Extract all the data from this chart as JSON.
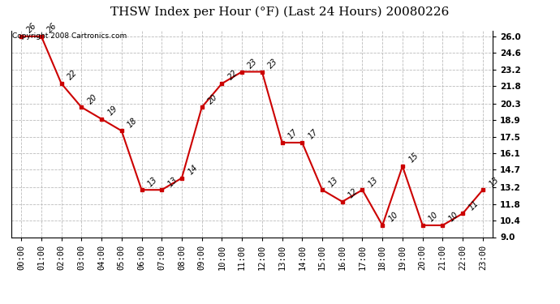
{
  "title": "THSW Index per Hour (°F) (Last 24 Hours) 20080226",
  "copyright": "Copyright 2008 Cartronics.com",
  "hours": [
    "00:00",
    "01:00",
    "02:00",
    "03:00",
    "04:00",
    "05:00",
    "06:00",
    "07:00",
    "08:00",
    "09:00",
    "10:00",
    "11:00",
    "12:00",
    "13:00",
    "14:00",
    "15:00",
    "16:00",
    "17:00",
    "18:00",
    "19:00",
    "20:00",
    "21:00",
    "22:00",
    "23:00"
  ],
  "values": [
    26,
    26,
    22,
    20,
    19,
    18,
    13,
    13,
    14,
    20,
    22,
    23,
    23,
    17,
    17,
    13,
    12,
    13,
    10,
    15,
    10,
    10,
    11,
    13
  ],
  "line_color": "#cc0000",
  "marker_color": "#cc0000",
  "bg_color": "#ffffff",
  "grid_color": "#bbbbbb",
  "ylim": [
    9.0,
    26.5
  ],
  "yticks": [
    9.0,
    10.4,
    11.8,
    13.2,
    14.7,
    16.1,
    17.5,
    18.9,
    20.3,
    21.8,
    23.2,
    24.6,
    26.0
  ],
  "title_fontsize": 11,
  "label_fontsize": 7.5,
  "copyright_fontsize": 6.5,
  "value_label_fontsize": 7
}
